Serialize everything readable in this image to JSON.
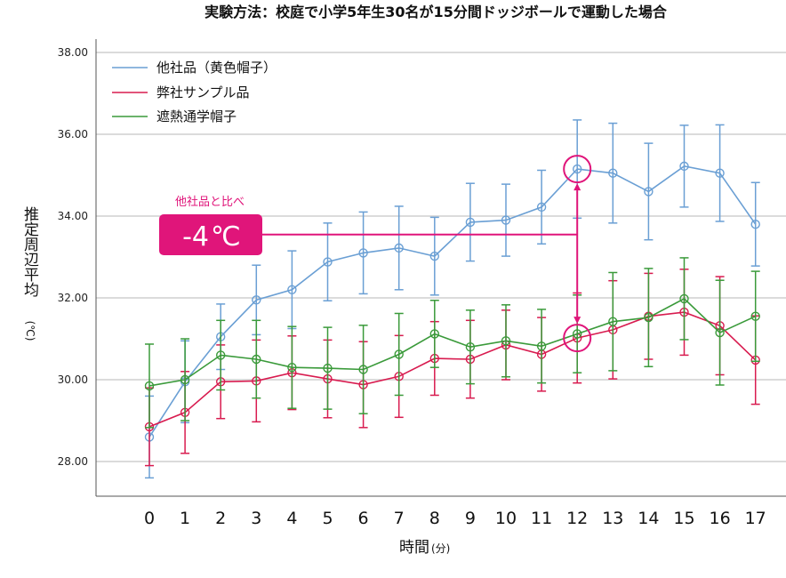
{
  "chart_data": {
    "type": "line",
    "title": "実験方法：校庭で小学5年生30名が15分間ドッジボールで運動した場合",
    "xlabel": "時間",
    "xlabel_unit": "(分)",
    "ylabel": "推定周辺平均",
    "ylabel_unit": "(℃)",
    "x": [
      0,
      1,
      2,
      3,
      4,
      5,
      6,
      7,
      8,
      9,
      10,
      11,
      12,
      13,
      14,
      15,
      16,
      17
    ],
    "y_ticks": [
      "28.00",
      "30.00",
      "32.00",
      "34.00",
      "36.00",
      "38.00"
    ],
    "ylim": [
      27.2,
      38.3
    ],
    "grid": true,
    "legend_position": "top-left",
    "series": [
      {
        "name": "他社品（黄色帽子）",
        "color": "#6a9fd4",
        "values": [
          28.6,
          29.95,
          31.05,
          31.95,
          32.2,
          32.88,
          33.1,
          33.22,
          33.02,
          33.85,
          33.9,
          34.22,
          35.15,
          35.05,
          34.6,
          35.22,
          35.05,
          33.8
        ],
        "errors": [
          1.0,
          1.0,
          0.8,
          0.85,
          0.95,
          0.95,
          1.0,
          1.02,
          0.95,
          0.95,
          0.88,
          0.9,
          1.2,
          1.22,
          1.18,
          1.0,
          1.18,
          1.02
        ]
      },
      {
        "name": "弊社サンプル品",
        "color": "#d81b4f",
        "values": [
          28.85,
          29.2,
          29.95,
          29.97,
          30.17,
          30.02,
          29.88,
          30.08,
          30.52,
          30.5,
          30.85,
          30.62,
          31.02,
          31.22,
          31.55,
          31.65,
          31.32,
          30.48
        ],
        "errors": [
          0.95,
          1.0,
          0.9,
          1.0,
          0.9,
          0.95,
          1.05,
          1.0,
          0.9,
          0.95,
          0.85,
          0.9,
          1.1,
          1.2,
          1.05,
          1.05,
          1.2,
          1.08
        ]
      },
      {
        "name": "遮熱通学帽子",
        "color": "#3a9a3a",
        "values": [
          29.85,
          30.0,
          30.6,
          30.5,
          30.3,
          30.28,
          30.25,
          30.62,
          31.12,
          30.8,
          30.95,
          30.82,
          31.12,
          31.42,
          31.52,
          31.98,
          31.15,
          31.55
        ],
        "errors": [
          1.02,
          1.0,
          0.85,
          0.95,
          1.0,
          1.0,
          1.08,
          1.0,
          0.82,
          0.9,
          0.88,
          0.9,
          0.95,
          1.2,
          1.2,
          1.0,
          1.28,
          1.1
        ]
      }
    ],
    "annotation": {
      "label": "他社品と比べ",
      "box_text": "-4",
      "box_unit": "℃",
      "color": "#e0157a",
      "at_x": 12,
      "reference_y": 33.55
    }
  }
}
